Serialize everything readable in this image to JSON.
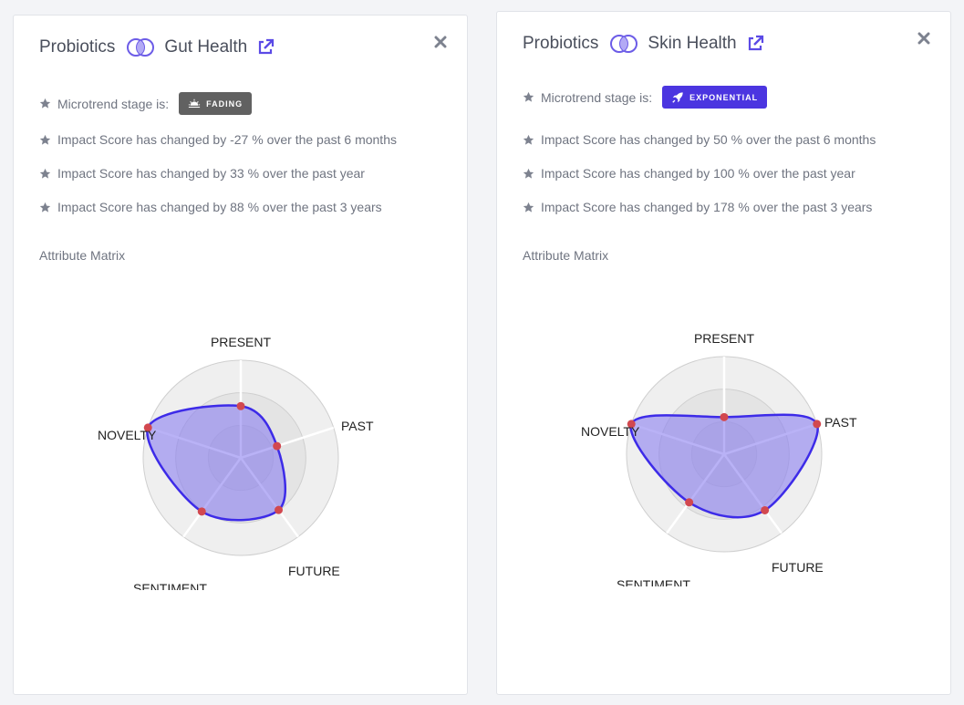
{
  "cards": [
    {
      "category": "Probiotics",
      "topic": "Gut Health",
      "stage_label": "Microtrend stage is:",
      "stage": {
        "text": "FADING",
        "color": "#616161",
        "icon": "sunset-icon"
      },
      "stats": [
        "Impact Score has changed by -27 % over the past 6 months",
        "Impact Score has changed by 33 % over the past year",
        "Impact Score has changed by 88 % over the past 3 years"
      ],
      "matrix_title": "Attribute Matrix",
      "radar": {
        "axes": [
          "PRESENT",
          "PAST",
          "FUTURE",
          "SENTIMENT",
          "NOVELTY"
        ],
        "values": [
          0.53,
          0.39,
          0.66,
          0.68,
          1.0
        ]
      }
    },
    {
      "category": "Probiotics",
      "topic": "Skin Health",
      "stage_label": "Microtrend stage is:",
      "stage": {
        "text": "EXPONENTIAL",
        "color": "#4b35e0",
        "icon": "rocket-icon"
      },
      "stats": [
        "Impact Score has changed by 50 % over the past 6 months",
        "Impact Score has changed by 100 % over the past year",
        "Impact Score has changed by 178 % over the past 3 years"
      ],
      "matrix_title": "Attribute Matrix",
      "radar": {
        "axes": [
          "PRESENT",
          "PAST",
          "FUTURE",
          "SENTIMENT",
          "NOVELTY"
        ],
        "values": [
          0.38,
          1.0,
          0.71,
          0.61,
          1.0
        ]
      }
    }
  ],
  "colors": {
    "accent": "#5b4ae6",
    "series_fill": "#8a7ff0",
    "series_stroke": "#3d2be8",
    "point": "#d2484f",
    "rings": [
      "#efefef",
      "#e4e4e4",
      "#d9d9d9"
    ]
  }
}
